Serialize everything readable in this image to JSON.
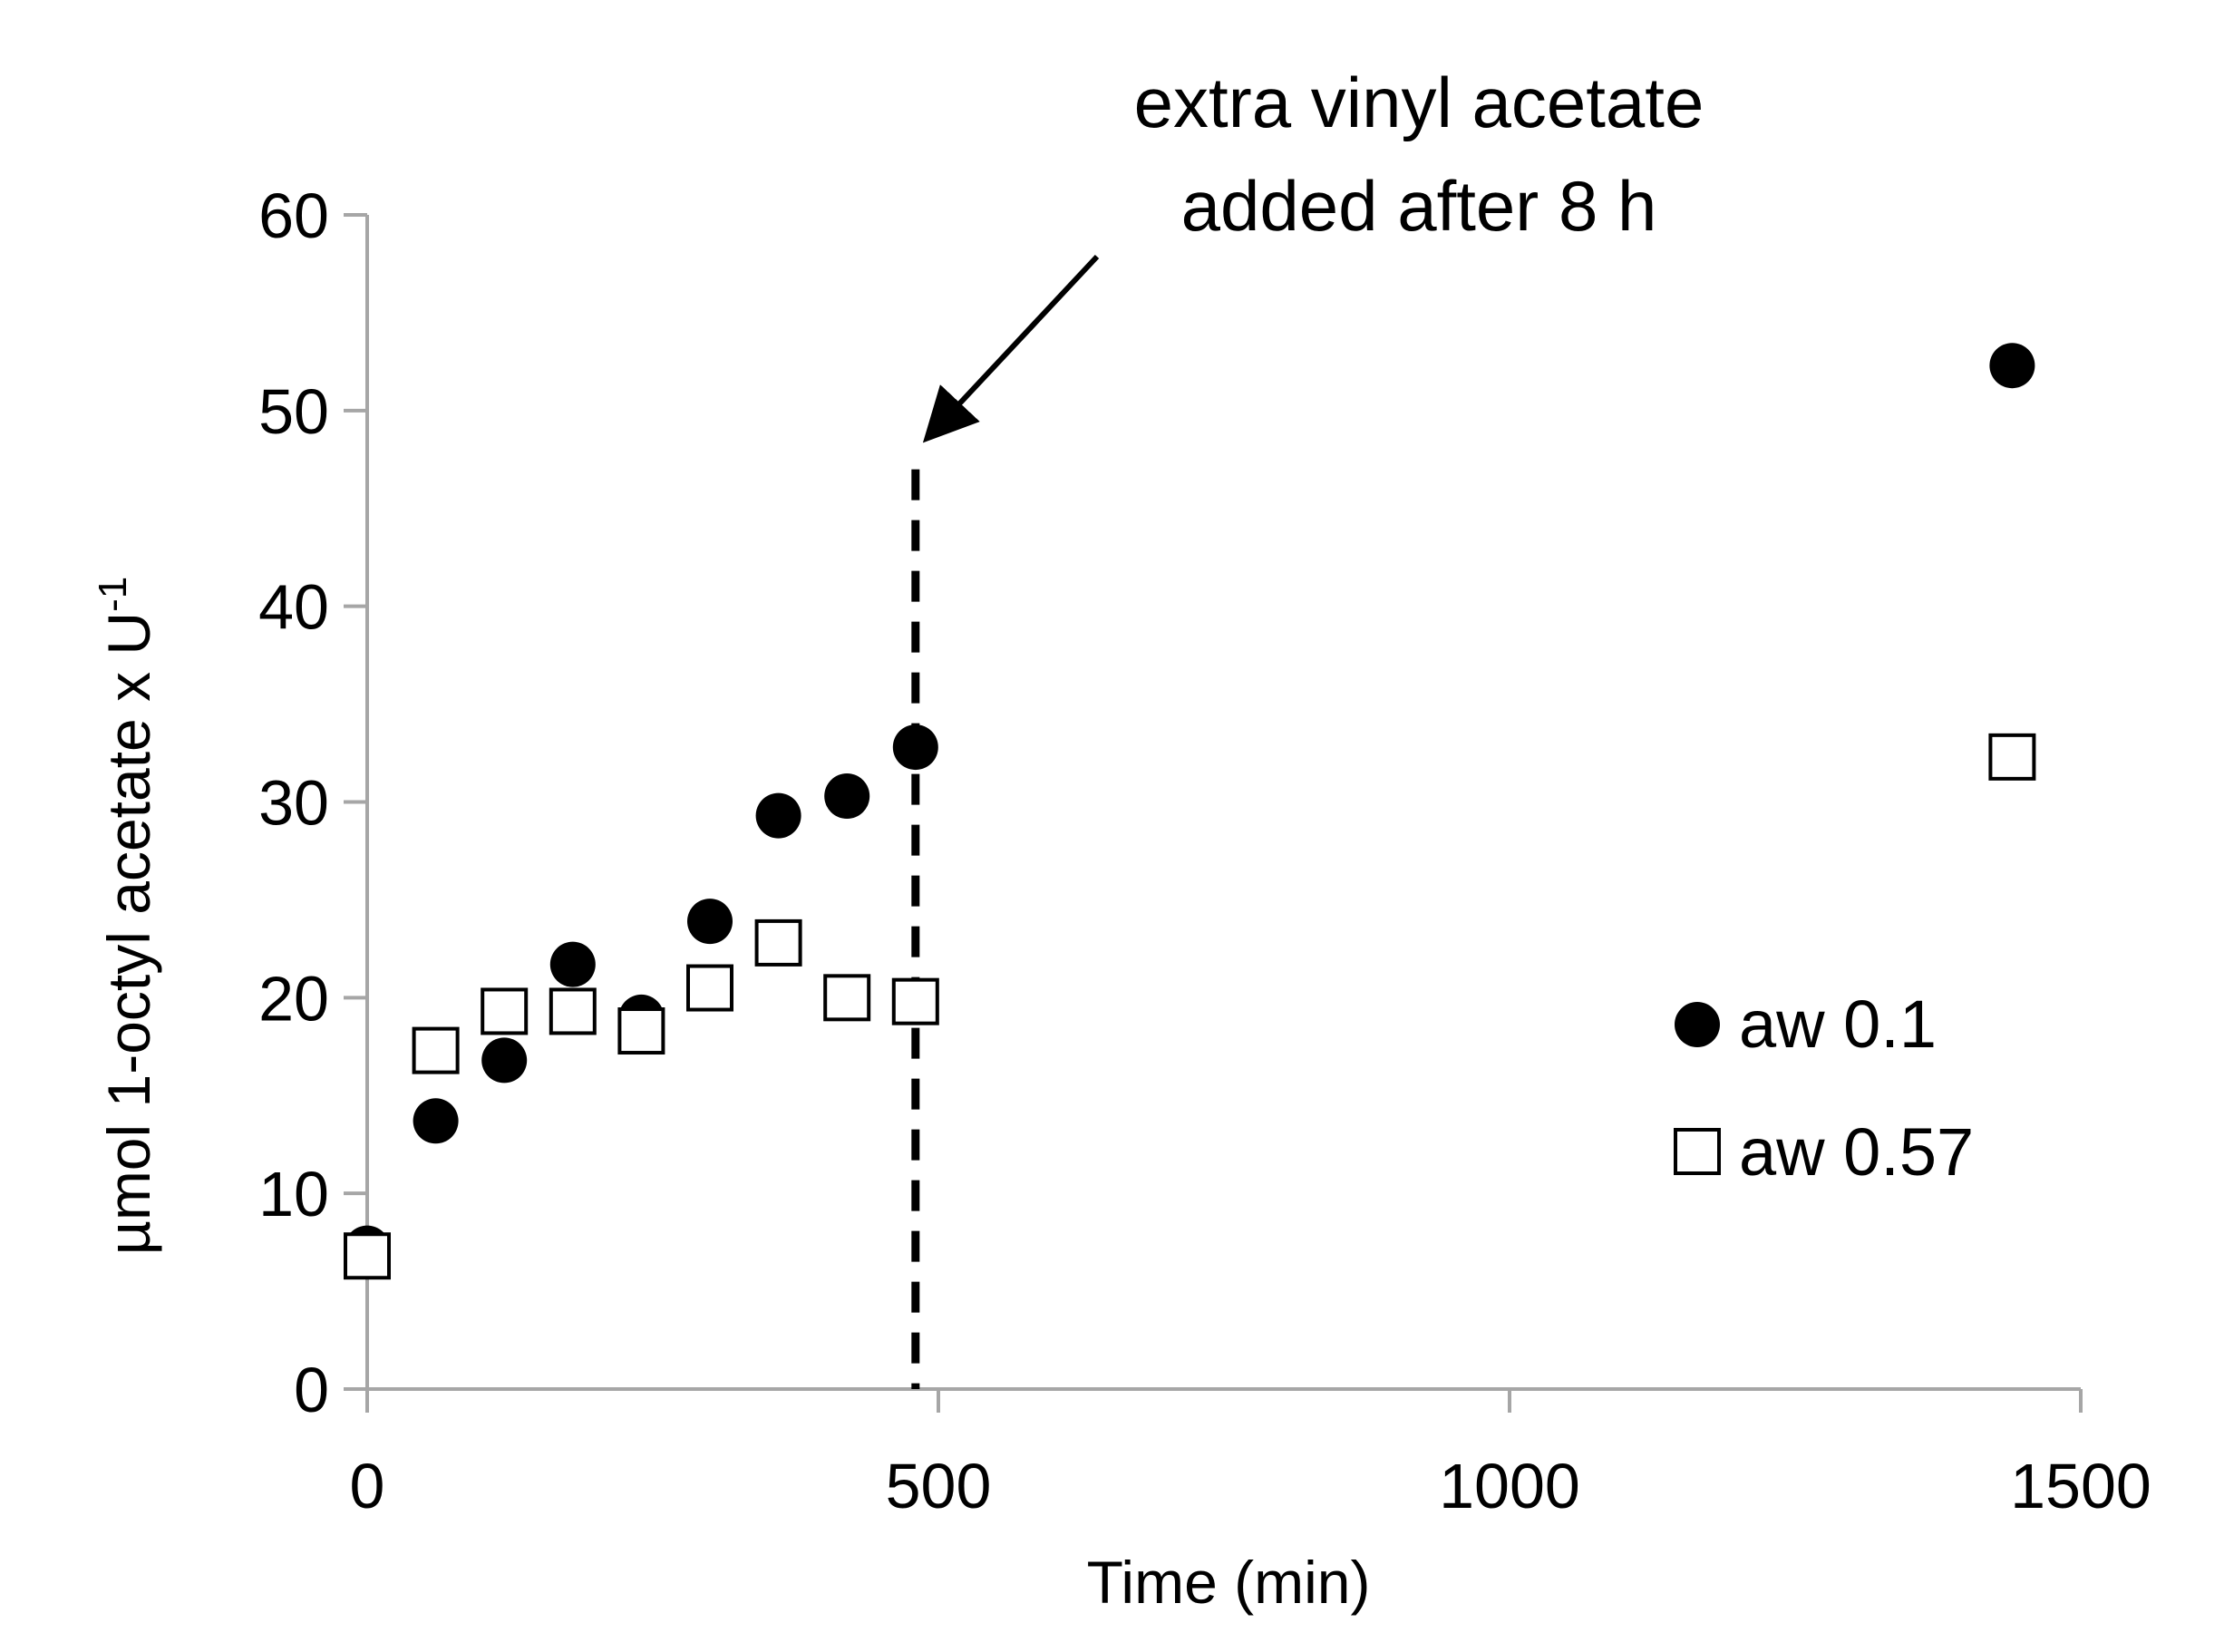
{
  "chart_data": {
    "type": "scatter",
    "title": "",
    "xlabel": "Time (min)",
    "ylabel": "µmol 1-octyl acetate x U",
    "ylabel_superscript": "-1",
    "xlim": [
      0,
      1500
    ],
    "ylim": [
      0,
      60
    ],
    "xticks": [
      0,
      500,
      1000,
      1500
    ],
    "yticks": [
      0,
      10,
      20,
      30,
      40,
      50,
      60
    ],
    "grid": false,
    "legend_position": "right",
    "series": [
      {
        "name": "aw 0.1",
        "marker": "filled-circle",
        "color": "#000000",
        "x": [
          0,
          60,
          120,
          180,
          240,
          300,
          360,
          420,
          480,
          1440
        ],
        "y": [
          7.2,
          13.7,
          16.8,
          21.7,
          19.0,
          23.9,
          29.3,
          30.3,
          32.8,
          52.3
        ]
      },
      {
        "name": "aw 0.57",
        "marker": "open-square",
        "color": "#000000",
        "x": [
          0,
          60,
          120,
          180,
          240,
          300,
          360,
          420,
          480,
          1440
        ],
        "y": [
          6.8,
          17.3,
          19.3,
          19.3,
          18.3,
          20.5,
          22.8,
          20.0,
          19.8,
          32.3
        ]
      }
    ],
    "annotation": {
      "lines": [
        "extra vinyl acetate",
        "added after 8 h"
      ],
      "vline_x": 480,
      "vline_ymax": 47,
      "style": "dashed"
    }
  }
}
